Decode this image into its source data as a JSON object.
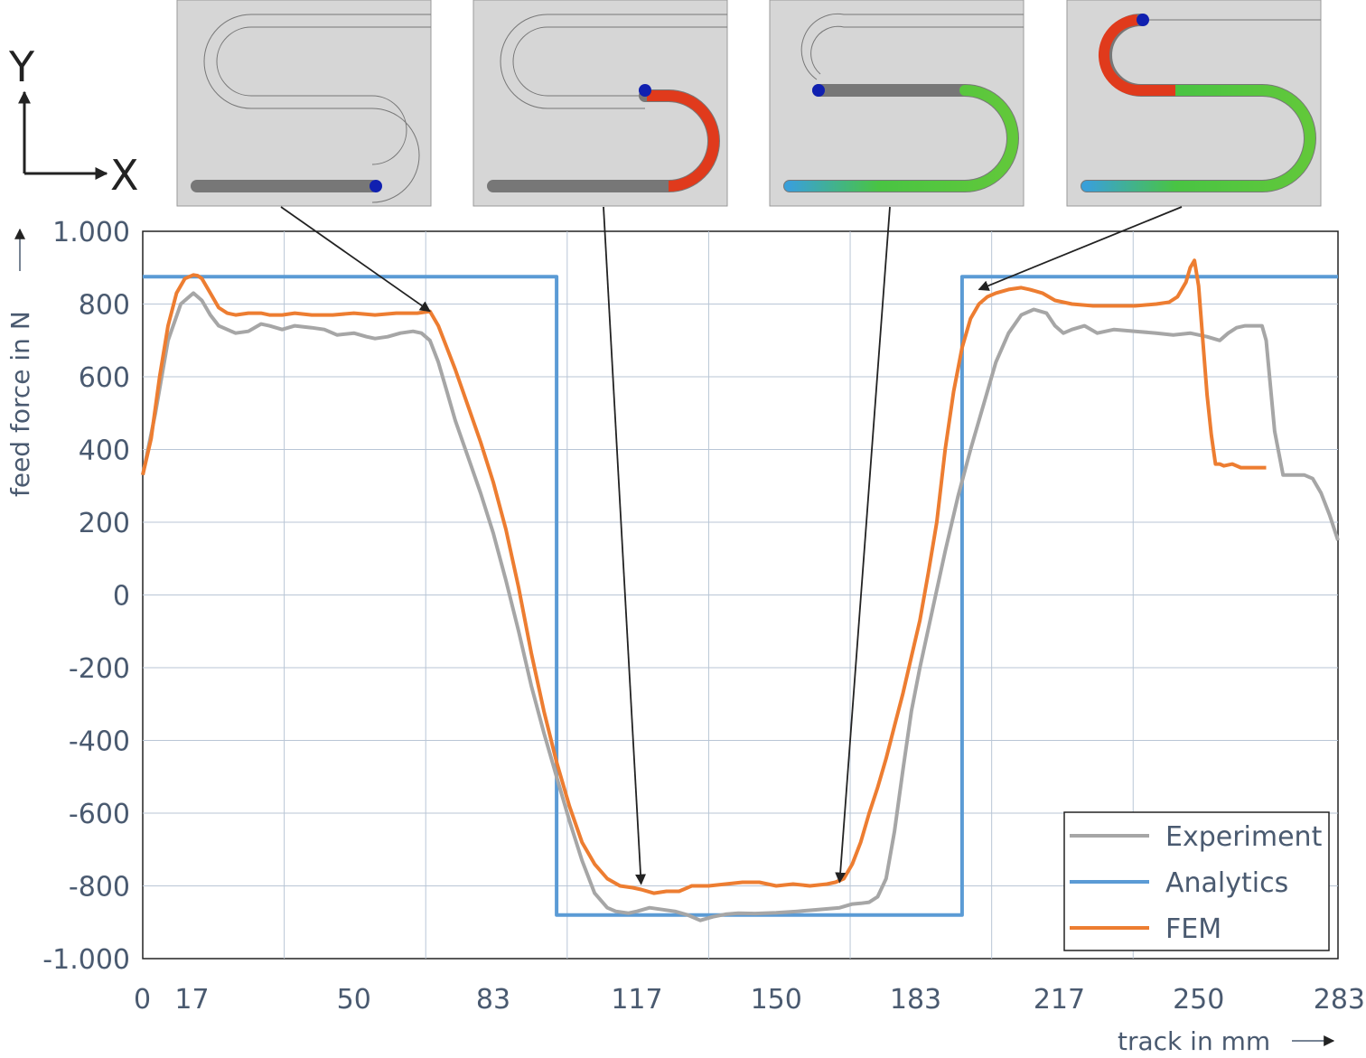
{
  "axes_indicator": {
    "y_label": "Y",
    "x_label": "X"
  },
  "chart_data": {
    "type": "line",
    "xlabel": "track in mm",
    "ylabel": "feed force in N",
    "xlim": [
      0,
      283
    ],
    "ylim": [
      -1000,
      1000
    ],
    "x_ticks": [
      0,
      17,
      50,
      83,
      117,
      150,
      183,
      217,
      250,
      283
    ],
    "y_ticks": [
      1000,
      800,
      600,
      400,
      200,
      0,
      -200,
      -400,
      -600,
      -800,
      -1000
    ],
    "y_tick_labels": [
      "1.000",
      "800",
      "600",
      "400",
      "200",
      "0",
      "-200",
      "-400",
      "-600",
      "-800",
      "-1.000"
    ],
    "x_gridlines": [
      33.5,
      67,
      100.5,
      134,
      167.5,
      201,
      234.5
    ],
    "y_gridlines": [
      800,
      600,
      400,
      200,
      0,
      -200,
      -400,
      -600,
      -800
    ],
    "grid": true,
    "legend_position": "bottom-right",
    "series": [
      {
        "name": "Experiment",
        "color": "#a6a6a6",
        "x": [
          0,
          3,
          6,
          9,
          10,
          12,
          14,
          16,
          18,
          20,
          22,
          25,
          28,
          30,
          33,
          36,
          40,
          43,
          46,
          50,
          53,
          55,
          58,
          61,
          64,
          66,
          68,
          70,
          72,
          74,
          77,
          80,
          83,
          86,
          89,
          92,
          95,
          98,
          101,
          104,
          107,
          110,
          112,
          115,
          117,
          120,
          123,
          126,
          129,
          132,
          135,
          138,
          141,
          145,
          150,
          155,
          160,
          165,
          168,
          170,
          172,
          174,
          176,
          178,
          180,
          182,
          184,
          187,
          190,
          193,
          196,
          199,
          202,
          205,
          208,
          211,
          214,
          216,
          218,
          220,
          223,
          226,
          230,
          235,
          240,
          244,
          248,
          252,
          255,
          257,
          259,
          261,
          263,
          265,
          266,
          268,
          270,
          275,
          277,
          279,
          281,
          283
        ],
        "y": [
          330,
          500,
          700,
          800,
          810,
          830,
          810,
          770,
          740,
          730,
          720,
          725,
          745,
          740,
          730,
          740,
          735,
          730,
          715,
          720,
          710,
          705,
          710,
          720,
          725,
          720,
          700,
          640,
          560,
          480,
          380,
          280,
          170,
          40,
          -100,
          -250,
          -380,
          -500,
          -620,
          -730,
          -820,
          -860,
          -870,
          -875,
          -870,
          -860,
          -865,
          -870,
          -880,
          -895,
          -885,
          -878,
          -875,
          -876,
          -874,
          -870,
          -865,
          -860,
          -850,
          -848,
          -845,
          -830,
          -780,
          -650,
          -480,
          -320,
          -200,
          -40,
          120,
          270,
          400,
          520,
          640,
          720,
          770,
          785,
          775,
          740,
          720,
          730,
          740,
          720,
          730,
          725,
          720,
          715,
          720,
          710,
          700,
          720,
          735,
          740,
          740,
          740,
          700,
          450,
          330,
          330,
          320,
          280,
          220,
          150
        ]
      },
      {
        "name": "Analytics",
        "color": "#5b9bd5",
        "x": [
          0,
          98,
          98,
          194,
          194,
          283
        ],
        "y": [
          875,
          875,
          -880,
          -880,
          875,
          875
        ]
      },
      {
        "name": "FEM",
        "color": "#ed7d31",
        "x": [
          0,
          2,
          4,
          6,
          8,
          10,
          12,
          13,
          14,
          16,
          18,
          20,
          22,
          25,
          28,
          30,
          33,
          36,
          40,
          45,
          50,
          55,
          60,
          65,
          68,
          70,
          72,
          74,
          77,
          80,
          83,
          86,
          89,
          92,
          95,
          98,
          101,
          104,
          107,
          110,
          113,
          116,
          118,
          121,
          124,
          127,
          130,
          134,
          138,
          142,
          146,
          150,
          154,
          158,
          162,
          164,
          166,
          168,
          170,
          172,
          174,
          176,
          178,
          180,
          182,
          184,
          186,
          188,
          190,
          192,
          194,
          196,
          198,
          200,
          202,
          205,
          208,
          210,
          213,
          216,
          220,
          225,
          230,
          235,
          240,
          243,
          245,
          247,
          248,
          249,
          250,
          251,
          252,
          253,
          254,
          255,
          256,
          258,
          260,
          262,
          264,
          266
        ],
        "y": [
          330,
          430,
          600,
          740,
          830,
          870,
          880,
          878,
          870,
          830,
          790,
          775,
          770,
          775,
          775,
          770,
          770,
          775,
          770,
          770,
          775,
          770,
          775,
          775,
          780,
          740,
          680,
          620,
          520,
          420,
          310,
          180,
          20,
          -160,
          -320,
          -460,
          -580,
          -680,
          -740,
          -780,
          -800,
          -805,
          -810,
          -820,
          -815,
          -815,
          -800,
          -800,
          -795,
          -790,
          -790,
          -800,
          -795,
          -800,
          -795,
          -790,
          -780,
          -740,
          -680,
          -600,
          -530,
          -450,
          -360,
          -270,
          -170,
          -70,
          60,
          200,
          400,
          560,
          680,
          760,
          800,
          820,
          830,
          840,
          845,
          840,
          830,
          810,
          800,
          795,
          795,
          795,
          800,
          805,
          820,
          860,
          900,
          920,
          850,
          700,
          550,
          440,
          360,
          360,
          355,
          360,
          350,
          350,
          350,
          350
        ]
      }
    ],
    "annotations": [
      {
        "type": "arrow",
        "target": [
          68,
          780
        ]
      },
      {
        "type": "arrow",
        "target": [
          118,
          -795
        ]
      },
      {
        "type": "arrow",
        "target": [
          165,
          -790
        ]
      },
      {
        "type": "arrow",
        "target": [
          198,
          840
        ]
      }
    ]
  }
}
